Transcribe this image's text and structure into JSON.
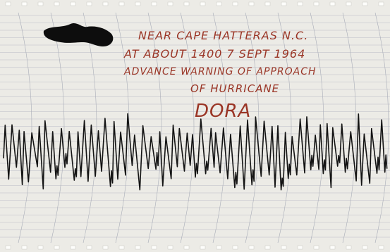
{
  "annotation": {
    "lines": [
      "NEAR CAPE HATTERAS N.C.",
      "AT ABOUT 1400 7 SEPT 1964",
      "ADVANCE WARNING OF APPROACH",
      "OF HURRICANE"
    ],
    "name": "DORA"
  }
}
